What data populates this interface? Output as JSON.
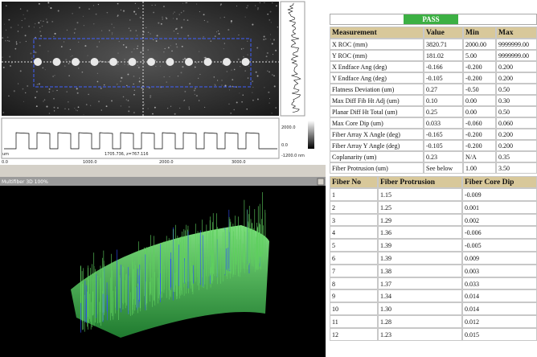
{
  "image_panel": {
    "x_axis_labels": [
      "0.0",
      "1000.0",
      "2000.0",
      "3000.0"
    ],
    "unit_label": "um",
    "cursor_readout": "1705.736, z=767.116",
    "scale_labels": [
      "2000.0",
      "0.0",
      "-1200.0 nm"
    ]
  },
  "view3d": {
    "title": "Multifiber 3D 100%"
  },
  "result": {
    "status": "PASS"
  },
  "measurements": {
    "columns": [
      "Measurement",
      "Value",
      "Min",
      "Max"
    ],
    "rows": [
      [
        "X ROC (mm)",
        "3820.71",
        "2000.00",
        "9999999.00"
      ],
      [
        "Y ROC (mm)",
        "181.02",
        "5.00",
        "9999999.00"
      ],
      [
        "X Endface Ang (deg)",
        "-0.166",
        "-0.200",
        "0.200"
      ],
      [
        "Y Endface Ang (deg)",
        "-0.105",
        "-0.200",
        "0.200"
      ],
      [
        "Flatness Deviation (um)",
        "0.27",
        "-0.50",
        "0.50"
      ],
      [
        "Max Diff Fib Ht Adj (um)",
        "0.10",
        "0.00",
        "0.30"
      ],
      [
        "Planar Diff Ht Total (um)",
        "0.25",
        "0.00",
        "0.50"
      ],
      [
        "Max Core Dip (um)",
        "0.033",
        "-0.060",
        "0.060"
      ],
      [
        "Fiber Array X Angle (deg)",
        "-0.165",
        "-0.200",
        "0.200"
      ],
      [
        "Fiber Array Y Angle (deg)",
        "-0.105",
        "-0.200",
        "0.200"
      ],
      [
        "Coplanarity (um)",
        "0.23",
        "N/A",
        "0.35"
      ],
      [
        "Fiber Protrusion (um)",
        "See below",
        "1.00",
        "3.50"
      ]
    ]
  },
  "fibers": {
    "columns": [
      "Fiber No",
      "Fiber Protrusion",
      "Fiber Core Dip"
    ],
    "rows": [
      [
        "1",
        "1.15",
        "-0.009"
      ],
      [
        "2",
        "1.25",
        "0.001"
      ],
      [
        "3",
        "1.29",
        "0.002"
      ],
      [
        "4",
        "1.36",
        "-0.006"
      ],
      [
        "5",
        "1.39",
        "-0.005"
      ],
      [
        "6",
        "1.39",
        "0.009"
      ],
      [
        "7",
        "1.38",
        "0.003"
      ],
      [
        "8",
        "1.37",
        "0.033"
      ],
      [
        "9",
        "1.34",
        "0.014"
      ],
      [
        "10",
        "1.30",
        "0.014"
      ],
      [
        "11",
        "1.28",
        "0.012"
      ],
      [
        "12",
        "1.23",
        "0.015"
      ]
    ]
  }
}
